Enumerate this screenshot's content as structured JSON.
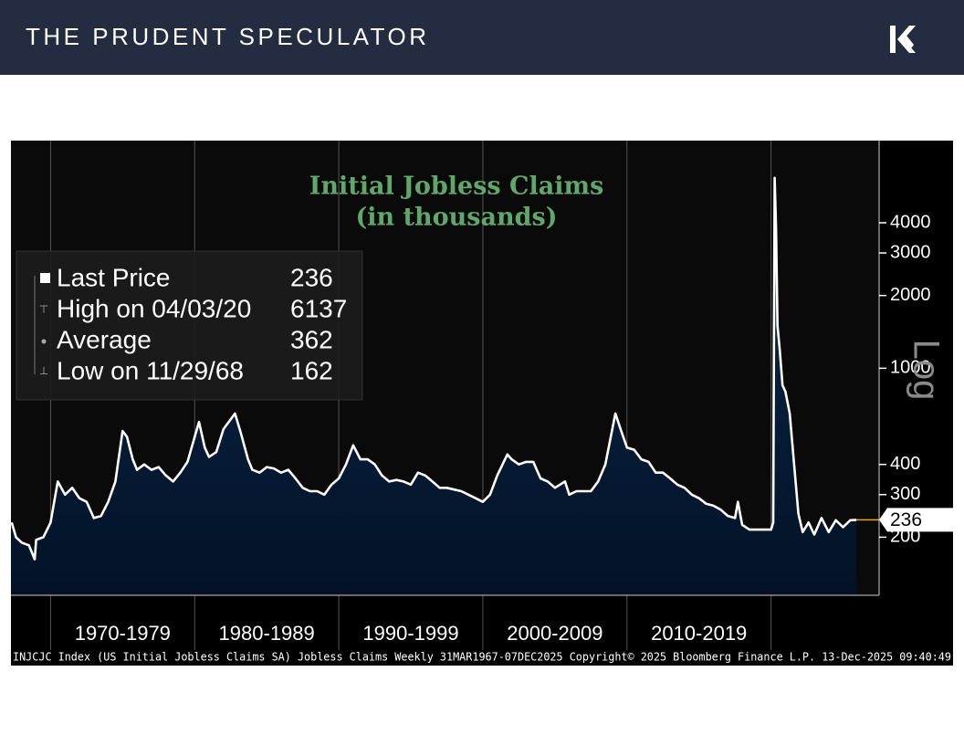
{
  "header": {
    "title": "THE PRUDENT SPECULATOR"
  },
  "chart_data": {
    "type": "line",
    "title": "Initial Jobless Claims",
    "subtitle": "(in thousands)",
    "log_scale": true,
    "scale_label": "Log",
    "grid": true,
    "area_color": "#0b2a4e",
    "x": [
      1967.3,
      1967.6,
      1968.0,
      1968.5,
      1968.9,
      1969.0,
      1969.5,
      1970.0,
      1970.5,
      1971.0,
      1971.5,
      1972.0,
      1972.5,
      1973.0,
      1973.5,
      1974.0,
      1974.5,
      1975.0,
      1975.3,
      1975.7,
      1976.0,
      1976.5,
      1977.0,
      1977.5,
      1978.0,
      1978.5,
      1979.0,
      1979.5,
      1980.3,
      1980.7,
      1981.0,
      1981.5,
      1982.0,
      1982.8,
      1983.2,
      1983.7,
      1984.0,
      1984.5,
      1985.0,
      1985.5,
      1986.0,
      1986.5,
      1987.0,
      1987.5,
      1988.0,
      1988.5,
      1989.0,
      1989.5,
      1990.0,
      1990.5,
      1991.0,
      1991.5,
      1992.0,
      1992.5,
      1993.0,
      1993.5,
      1994.0,
      1994.5,
      1995.0,
      1995.5,
      1996.0,
      1996.5,
      1997.0,
      1997.5,
      1998.0,
      1998.5,
      1999.0,
      1999.5,
      2000.0,
      2000.5,
      2001.0,
      2001.7,
      2002.0,
      2002.5,
      2003.0,
      2003.5,
      2004.0,
      2004.5,
      2005.0,
      2005.7,
      2006.0,
      2006.5,
      2007.0,
      2007.5,
      2008.0,
      2008.5,
      2009.2,
      2009.6,
      2010.0,
      2010.5,
      2011.0,
      2011.5,
      2012.0,
      2012.5,
      2013.0,
      2013.5,
      2014.0,
      2014.5,
      2015.0,
      2015.5,
      2016.0,
      2016.5,
      2017.0,
      2017.5,
      2017.7,
      2018.0,
      2018.5,
      2019.0,
      2019.5,
      2020.0,
      2020.15,
      2020.25,
      2020.35,
      2020.45,
      2020.6,
      2020.8,
      2021.0,
      2021.3,
      2021.6,
      2021.9,
      2022.2,
      2022.6,
      2023.0,
      2023.5,
      2024.0,
      2024.5,
      2025.0,
      2025.5,
      2025.93
    ],
    "series": [
      {
        "name": "Last Price",
        "color": "#ffffff",
        "values": [
          230,
          200,
          190,
          185,
          162,
          195,
          200,
          230,
          340,
          300,
          320,
          290,
          280,
          240,
          245,
          280,
          340,
          550,
          520,
          420,
          380,
          400,
          380,
          390,
          360,
          340,
          370,
          410,
          600,
          470,
          430,
          450,
          560,
          650,
          540,
          420,
          380,
          370,
          390,
          385,
          370,
          380,
          350,
          320,
          310,
          310,
          300,
          330,
          350,
          400,
          480,
          420,
          420,
          400,
          360,
          340,
          345,
          340,
          330,
          370,
          360,
          340,
          320,
          320,
          315,
          310,
          300,
          290,
          280,
          300,
          360,
          440,
          420,
          400,
          410,
          410,
          350,
          340,
          320,
          340,
          300,
          310,
          310,
          310,
          340,
          400,
          650,
          550,
          470,
          460,
          420,
          410,
          370,
          370,
          350,
          330,
          320,
          300,
          290,
          275,
          270,
          260,
          245,
          240,
          280,
          225,
          215,
          215,
          215,
          215,
          230,
          6137,
          3800,
          1500,
          1200,
          850,
          800,
          650,
          400,
          250,
          210,
          230,
          205,
          240,
          210,
          235,
          220,
          235,
          236
        ]
      }
    ],
    "legend": [
      {
        "label": "Last Price",
        "value": 236
      },
      {
        "label": "High on 04/03/20",
        "value": 6137
      },
      {
        "label": "Average",
        "value": 362
      },
      {
        "label": "Low on 11/29/68",
        "value": 162
      }
    ],
    "last_price_color": "#f0a030",
    "xlim": [
      1967.25,
      2027.5
    ],
    "xticks": [
      1970,
      1980,
      1990,
      2000,
      2010,
      2020
    ],
    "x_labels": [
      "1970-1979",
      "1980-1989",
      "1990-1999",
      "2000-2009",
      "2010-2019"
    ],
    "ylim": [
      115,
      8750
    ],
    "yticks": [
      200,
      300,
      400,
      1000,
      2000,
      3000,
      4000
    ],
    "source": "INJCJC Index (US Initial Jobless Claims SA) Jobless Claims Weekly 31MAR1967-07DEC2025  Copyright© 2025 Bloomberg Finance L.P.  13-Dec-2025 09:40:49"
  }
}
